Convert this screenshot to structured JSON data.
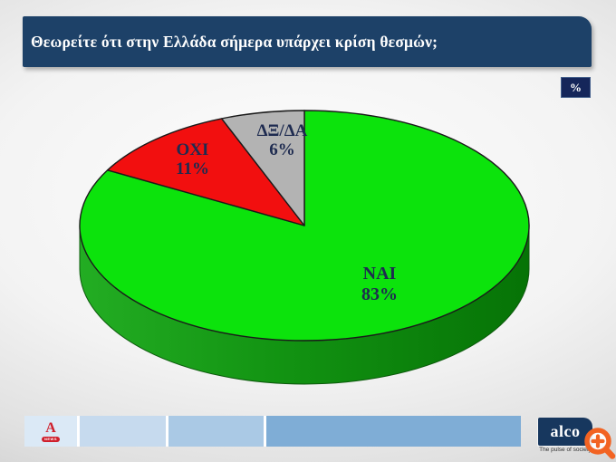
{
  "slide": {
    "title": "Θεωρείτε ότι στην Ελλάδα σήμερα υπάρχει κρίση θεσμών;",
    "unit_badge": "%"
  },
  "chart_data": {
    "type": "pie",
    "style": "3d",
    "title": "Θεωρείτε ότι στην Ελλάδα σήμερα υπάρχει κρίση θεσμών;",
    "unit": "%",
    "labels": [
      "ΝΑΙ",
      "ΟΧΙ",
      "ΔΞ/ΔΑ"
    ],
    "values": [
      83,
      11,
      6
    ],
    "display_values": [
      "83%",
      "11%",
      "6%"
    ],
    "colors": [
      "#0ce30c",
      "#f20f0f",
      "#b3b3b3"
    ],
    "start_angle_deg": 0,
    "direction": "clockwise",
    "label_color": "#1e2b50",
    "legend": "none"
  },
  "footer": {
    "alpha_news": {
      "letter": "A",
      "badge": "NEWS"
    },
    "alco": {
      "name": "alco",
      "tagline": "The pulse of society"
    }
  }
}
